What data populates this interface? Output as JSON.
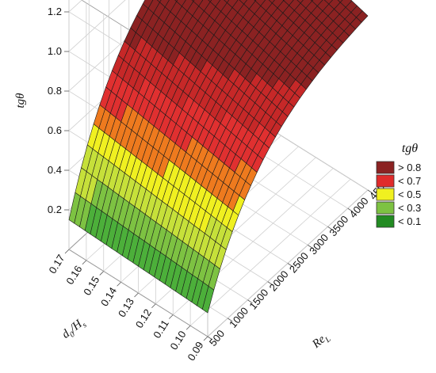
{
  "chart_data": {
    "type": "surface3d",
    "title": "",
    "x_axis": {
      "label": "Re_L",
      "label_main": "Re",
      "label_sub": "L",
      "ticks": [
        "500",
        "1000",
        "1500",
        "2000",
        "2500",
        "3000",
        "3500",
        "4000",
        "4500"
      ],
      "range": [
        500,
        4500
      ]
    },
    "y_axis": {
      "label": "d0/Hs",
      "label_main": "d",
      "label_sub1": "0",
      "label_mid": "/H",
      "label_sub2": "s",
      "ticks": [
        "0.09",
        "0.10",
        "0.11",
        "0.12",
        "0.13",
        "0.14",
        "0.15",
        "0.16",
        "0.17"
      ],
      "range": [
        0.09,
        0.17
      ]
    },
    "z_axis": {
      "label": "tgθ",
      "ticks": [
        "0.2",
        "0.4",
        "0.6",
        "0.8",
        "1.0",
        "1.2"
      ],
      "range": [
        0.0,
        1.3
      ]
    },
    "series": [
      {
        "surface": "tgθ(Re_L, d0/Hs)",
        "samples": [
          {
            "ReL": 500,
            "d0Hs": 0.09,
            "tg": 0.12
          },
          {
            "ReL": 500,
            "d0Hs": 0.17,
            "tg": 0.15
          },
          {
            "ReL": 1500,
            "d0Hs": 0.13,
            "tg": 0.45
          },
          {
            "ReL": 2500,
            "d0Hs": 0.13,
            "tg": 0.8
          },
          {
            "ReL": 3500,
            "d0Hs": 0.13,
            "tg": 1.02
          },
          {
            "ReL": 4500,
            "d0Hs": 0.09,
            "tg": 0.88
          },
          {
            "ReL": 4500,
            "d0Hs": 0.17,
            "tg": 1.1
          }
        ]
      }
    ],
    "legend": {
      "title": "tgθ",
      "placement": "right",
      "items": [
        {
          "label": "> 0.8",
          "color": "#8b2222"
        },
        {
          "label": "< 0.7",
          "color": "#e02b2b"
        },
        {
          "label": "< 0.5",
          "color": "#f0f020"
        },
        {
          "label": "< 0.3",
          "color": "#7dc242"
        },
        {
          "label": "< 0.1",
          "color": "#228b22"
        }
      ]
    },
    "grid": true
  }
}
